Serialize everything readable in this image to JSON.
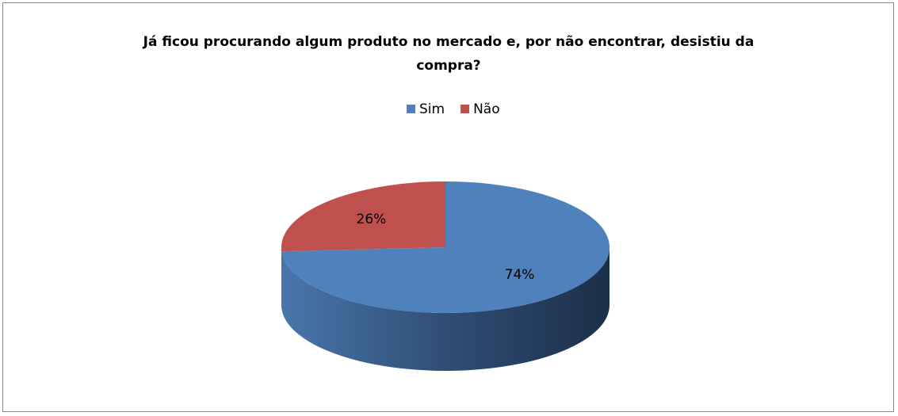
{
  "chart_data": {
    "type": "pie3d",
    "title": "Já ficou procurando algum produto no mercado e, por não encontrar, desistiu da compra?",
    "categories": [
      "Sim",
      "Não"
    ],
    "values": [
      74,
      26
    ],
    "value_labels": [
      "74%",
      "26%"
    ],
    "colors": [
      "#4f81bd",
      "#c0504d"
    ],
    "legend": "top"
  }
}
